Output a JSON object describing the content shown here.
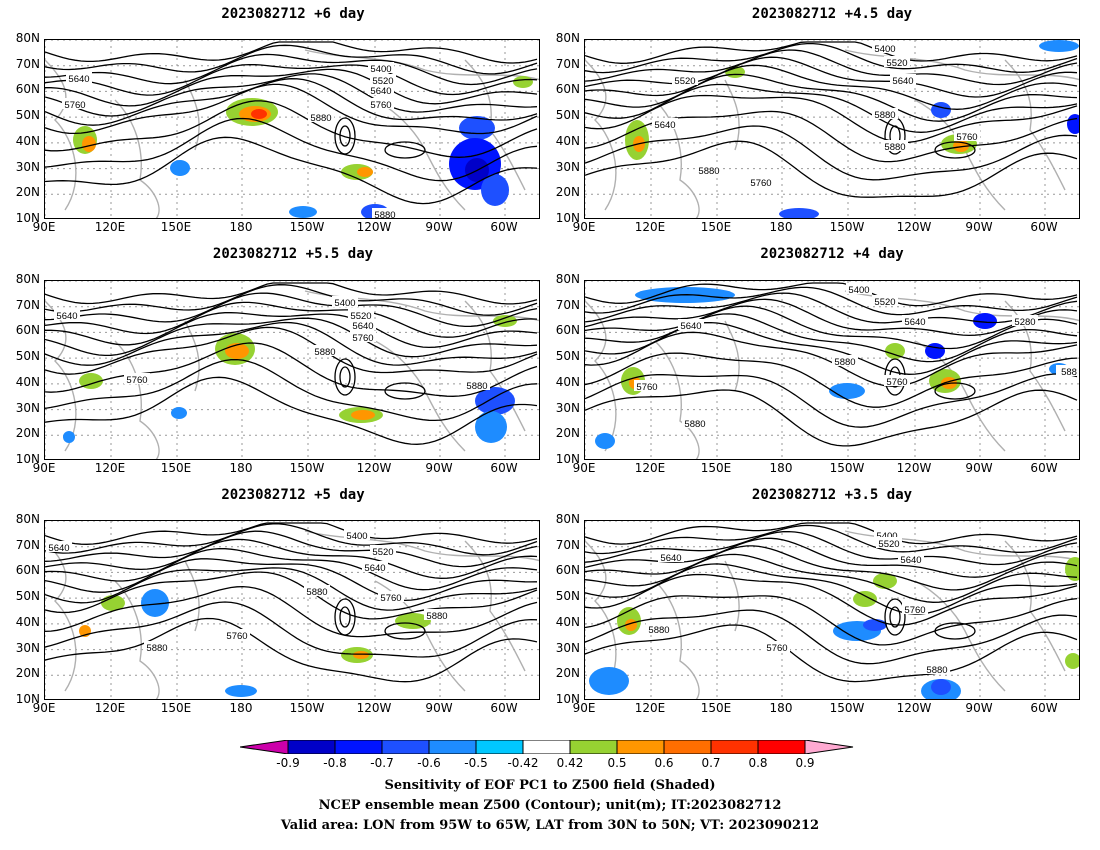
{
  "panels": [
    {
      "title": "2023082712  +6 day",
      "contour_labels": [
        "5400",
        "5520",
        "5640",
        "5760",
        "5880",
        "5640",
        "5760",
        "5880"
      ]
    },
    {
      "title": "2023082712  +4.5 day",
      "contour_labels": [
        "5400",
        "5520",
        "5640",
        "5520",
        "5640",
        "5760",
        "5880",
        "5760",
        "5880",
        "5880"
      ]
    },
    {
      "title": "2023082712  +5.5 day",
      "contour_labels": [
        "5400",
        "5520",
        "5640",
        "5760",
        "5880",
        "5640",
        "5760",
        "5880"
      ]
    },
    {
      "title": "2023082712  +4 day",
      "contour_labels": [
        "5400",
        "5520",
        "5640",
        "5280",
        "5640",
        "5760",
        "5880",
        "5760",
        "5880",
        "588"
      ]
    },
    {
      "title": "2023082712  +5 day",
      "contour_labels": [
        "5400",
        "5520",
        "5640",
        "5640",
        "5880",
        "5760",
        "5880",
        "5760",
        "5880"
      ]
    },
    {
      "title": "2023082712  +3.5 day",
      "contour_labels": [
        "5400",
        "5520",
        "5640",
        "5640",
        "5760",
        "5880",
        "5760",
        "5880"
      ]
    }
  ],
  "lat_ticks": [
    "80N",
    "70N",
    "60N",
    "50N",
    "40N",
    "30N",
    "20N",
    "10N"
  ],
  "lon_ticks": [
    "90E",
    "120E",
    "150E",
    "180",
    "150W",
    "120W",
    "90W",
    "60W"
  ],
  "colorbar": {
    "ticks": [
      "-0.9",
      "-0.8",
      "-0.7",
      "-0.6",
      "-0.5",
      "-0.42",
      "0.42",
      "0.5",
      "0.6",
      "0.7",
      "0.8",
      "0.9"
    ],
    "colors": [
      "#cc00aa",
      "#0000c8",
      "#0014ff",
      "#1e50ff",
      "#1e8cff",
      "#00c8ff",
      "#ffffff",
      "#96d232",
      "#ff9600",
      "#ff6e00",
      "#ff3200",
      "#ff0000",
      "#ffaad2"
    ]
  },
  "caption": {
    "line1": "Sensitivity of EOF PC1 to Z500 field (Shaded)",
    "line2": "NCEP ensemble mean Z500 (Contour); unit(m); IT:2023082712",
    "line3": "Valid area: LON from 95W to 65W, LAT from 30N to 50N; VT: 2023090212"
  }
}
